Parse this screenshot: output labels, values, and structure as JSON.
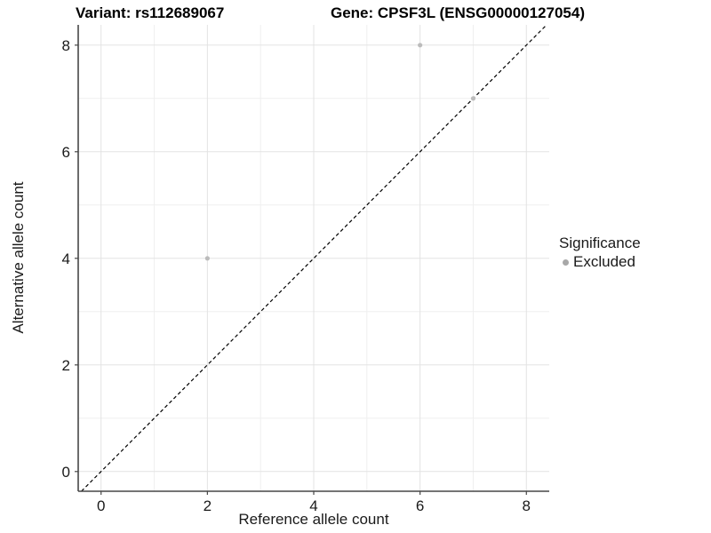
{
  "titles": {
    "left": "Variant: rs112689067",
    "right": "Gene: CPSF3L (ENSG00000127054)"
  },
  "axes": {
    "x_label": "Reference allele count",
    "y_label": "Alternative allele count"
  },
  "legend": {
    "title": "Significance",
    "items": [
      {
        "label": "Excluded",
        "color": "#a8a8a8"
      }
    ]
  },
  "colors": {
    "point": "#bcbcbc",
    "grid_major": "#e3e3e3",
    "grid_minor": "#efefef",
    "axis_line": "#474747",
    "tick_text": "#1a1a1a",
    "identity_line": "#000000"
  },
  "chart_data": {
    "type": "scatter",
    "title": "Variant: rs112689067   Gene: CPSF3L (ENSG00000127054)",
    "xlabel": "Reference allele count",
    "ylabel": "Alternative allele count",
    "xlim": [
      -0.43,
      8.43
    ],
    "ylim": [
      -0.37,
      8.38
    ],
    "xticks": [
      0,
      2,
      4,
      6,
      8
    ],
    "yticks": [
      0,
      2,
      4,
      6,
      8
    ],
    "x_minor_gridlines": [
      1,
      3,
      5,
      7
    ],
    "y_minor_gridlines": [
      1,
      3,
      5,
      7
    ],
    "grid": "major+minor",
    "legend_position": "right",
    "legend_title": "Significance",
    "identity_line": {
      "type": "abline",
      "slope": 1,
      "intercept": 0,
      "style": "dashed"
    },
    "series": [
      {
        "name": "Excluded",
        "marker": "circle",
        "color": "#bcbcbc",
        "points": [
          [
            2,
            4
          ],
          [
            6,
            8
          ],
          [
            7,
            7
          ]
        ]
      }
    ]
  }
}
